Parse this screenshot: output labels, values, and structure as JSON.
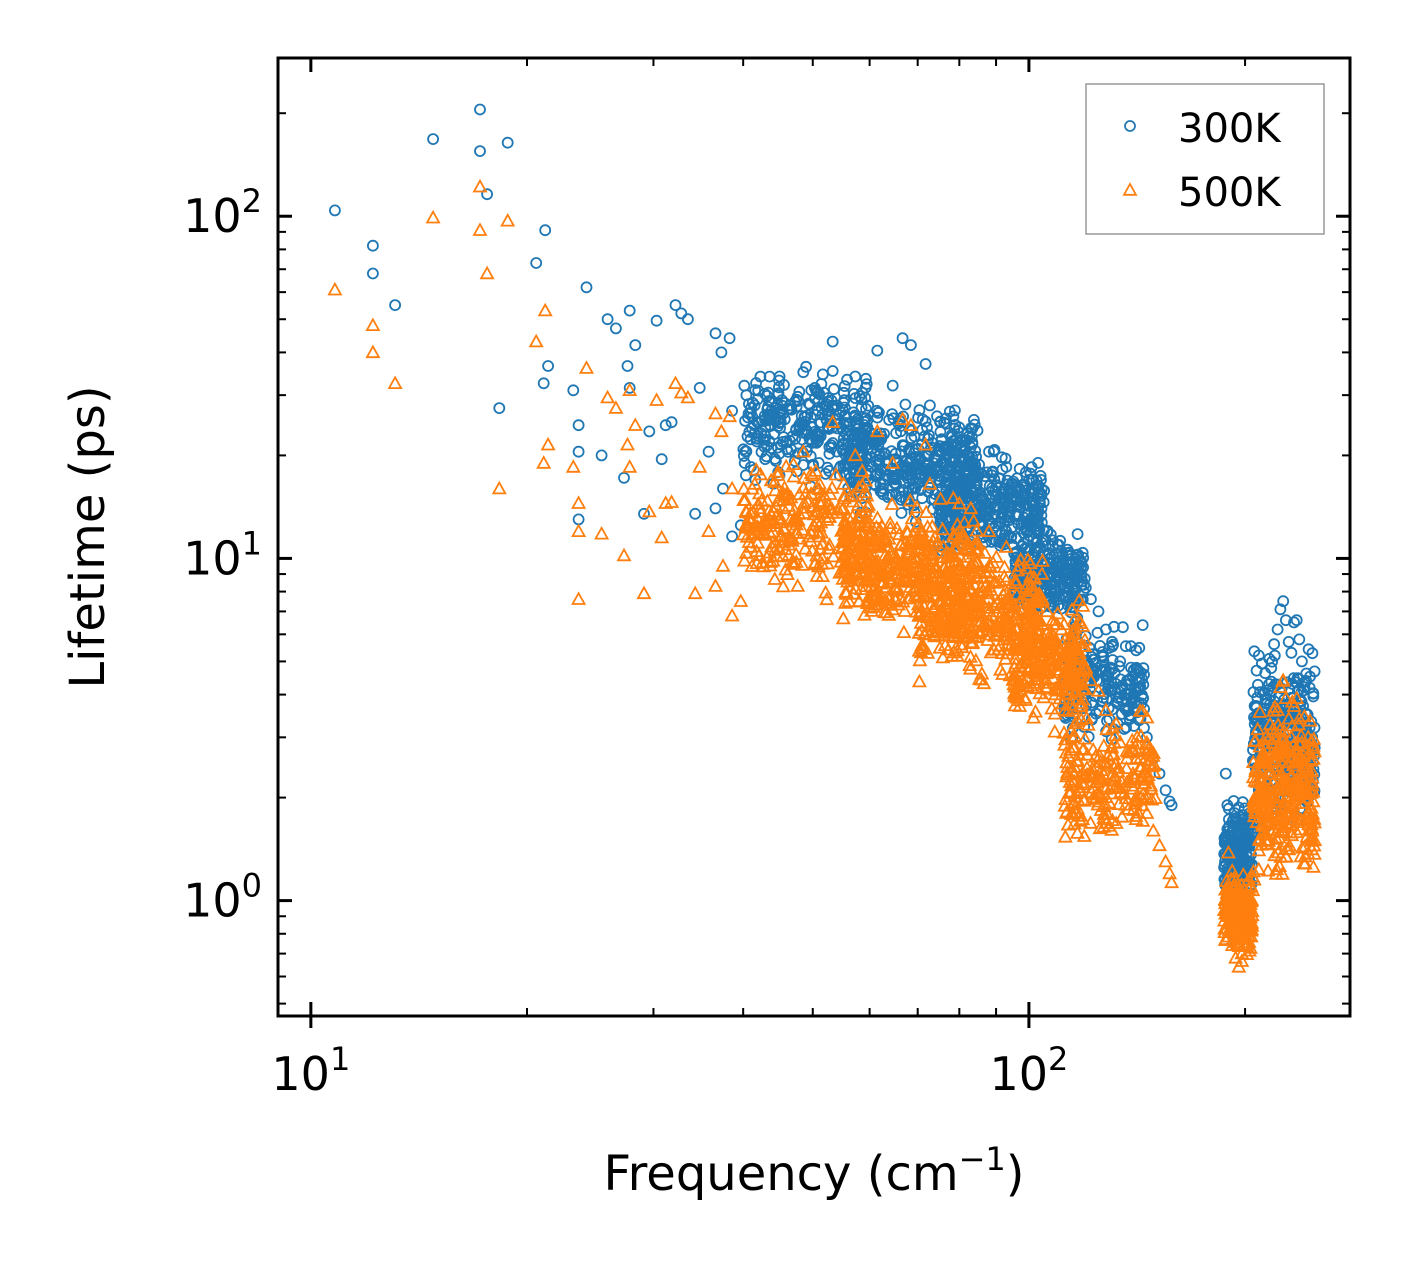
{
  "chart_data": {
    "type": "scatter",
    "title": "",
    "xlabel": "Frequency (cm",
    "xlabel_sup": "−1",
    "xlabel_end": ")",
    "ylabel": "Lifetime (ps)",
    "xscale": "log",
    "yscale": "log",
    "xlim": [
      9,
      280
    ],
    "ylim": [
      0.46,
      290
    ],
    "x_ticks": [
      {
        "value": 10,
        "base": "10",
        "exp": "1"
      },
      {
        "value": 100,
        "base": "10",
        "exp": "2"
      }
    ],
    "y_ticks": [
      {
        "value": 1,
        "base": "10",
        "exp": "0"
      },
      {
        "value": 10,
        "base": "10",
        "exp": "1"
      },
      {
        "value": 100,
        "base": "10",
        "exp": "2"
      }
    ],
    "legend": {
      "location": "top-right"
    },
    "series": [
      {
        "name": "300K",
        "marker": "circle",
        "color": "#1f77b4",
        "points": [
          [
            10.8,
            104
          ],
          [
            12.2,
            82
          ],
          [
            12.2,
            68
          ],
          [
            13.1,
            55
          ],
          [
            14.8,
            168
          ],
          [
            17.2,
            205
          ],
          [
            17.2,
            155
          ],
          [
            17.6,
            116
          ],
          [
            18.3,
            27.5
          ],
          [
            18.8,
            164
          ],
          [
            20.6,
            73
          ],
          [
            21.2,
            91
          ],
          [
            21.1,
            32.5
          ],
          [
            21.4,
            36.5
          ],
          [
            23.2,
            31
          ],
          [
            23.6,
            24.5
          ],
          [
            23.6,
            20.5
          ],
          [
            23.6,
            13
          ],
          [
            24.2,
            62
          ],
          [
            25.4,
            20
          ],
          [
            25.9,
            50
          ],
          [
            26.6,
            47
          ],
          [
            27.3,
            17.2
          ],
          [
            27.6,
            36.5
          ],
          [
            27.8,
            31.5
          ],
          [
            27.8,
            53
          ],
          [
            28.3,
            42
          ],
          [
            29.1,
            13.5
          ],
          [
            29.6,
            23.5
          ],
          [
            30.3,
            49.5
          ],
          [
            30.8,
            19.5
          ],
          [
            31.2,
            24.5
          ],
          [
            31.8,
            25
          ],
          [
            32.2,
            55
          ],
          [
            32.8,
            52
          ],
          [
            33.5,
            50
          ],
          [
            34.3,
            13.5
          ],
          [
            34.8,
            31.5
          ],
          [
            35.8,
            20.5
          ],
          [
            36.6,
            14
          ],
          [
            36.6,
            45.5
          ],
          [
            37.3,
            40
          ],
          [
            37.5,
            16
          ],
          [
            38.3,
            44
          ],
          [
            38.6,
            11.6
          ],
          [
            38.6,
            27
          ],
          [
            39.7,
            12.5
          ],
          [
            41.0,
            18.5
          ],
          [
            41.5,
            28
          ],
          [
            43.5,
            22
          ],
          [
            44.7,
            30
          ],
          [
            45.5,
            26.5
          ],
          [
            48.5,
            35
          ],
          [
            50.5,
            31
          ],
          [
            53.3,
            43
          ],
          [
            55.2,
            28.5
          ],
          [
            57.3,
            34
          ],
          [
            58.6,
            30.5
          ],
          [
            61.5,
            40.5
          ],
          [
            64.6,
            32
          ],
          [
            66.7,
            44
          ],
          [
            68.5,
            42
          ],
          [
            71.8,
            37
          ],
          [
            72.8,
            28
          ],
          [
            78.5,
            26
          ],
          [
            83,
            24
          ],
          [
            88,
            20.5
          ],
          [
            93,
            18.5
          ],
          [
            97,
            16
          ],
          [
            102,
            13
          ],
          [
            106,
            12
          ],
          [
            108,
            11.3
          ],
          [
            111,
            10.5
          ],
          [
            115,
            9.8
          ],
          [
            117,
            9.0
          ],
          [
            120,
            8.2
          ],
          [
            122,
            7.6
          ],
          [
            125,
            7.0
          ],
          [
            128,
            6.2
          ],
          [
            131,
            5.6
          ],
          [
            134,
            5.0
          ],
          [
            137,
            4.4
          ],
          [
            140,
            3.9
          ],
          [
            143,
            3.4
          ],
          [
            146,
            3.0
          ],
          [
            149,
            2.6
          ],
          [
            152,
            2.35
          ],
          [
            155,
            2.1
          ],
          [
            157,
            1.95
          ],
          [
            158,
            1.9
          ],
          [
            188,
            2.35
          ],
          [
            189,
            1.9
          ],
          [
            190,
            1.65
          ],
          [
            192,
            1.45
          ],
          [
            194,
            1.28
          ],
          [
            196,
            1.2
          ],
          [
            198,
            1.15
          ],
          [
            200,
            1.25
          ],
          [
            203,
            1.45
          ],
          [
            206,
            1.7
          ],
          [
            209,
            2.1
          ],
          [
            212,
            2.6
          ],
          [
            215,
            3.2
          ],
          [
            218,
            4.1
          ],
          [
            220,
            5.2
          ],
          [
            222,
            6.2
          ],
          [
            224,
            7.1
          ],
          [
            226,
            7.5
          ],
          [
            228,
            6.6
          ],
          [
            230,
            5.7
          ],
          [
            232,
            5.3
          ],
          [
            234,
            6.5
          ],
          [
            236,
            6.6
          ],
          [
            238,
            5.8
          ],
          [
            240,
            5.0
          ],
          [
            242,
            4.2
          ],
          [
            244,
            3.5
          ],
          [
            246,
            3.2
          ],
          [
            248,
            3.0
          ],
          [
            250,
            2.8
          ]
        ],
        "clusters": [
          {
            "x": [
              40,
              60
            ],
            "y": [
              15,
              40
            ],
            "n": 280
          },
          {
            "x": [
              55,
              85
            ],
            "y": [
              12,
              30
            ],
            "n": 420
          },
          {
            "x": [
              75,
              105
            ],
            "y": [
              9,
              22
            ],
            "n": 380
          },
          {
            "x": [
              95,
              120
            ],
            "y": [
              6,
              13
            ],
            "n": 260
          },
          {
            "x": [
              112,
              145
            ],
            "y": [
              2.6,
              7
            ],
            "n": 220
          },
          {
            "x": [
              187,
              205
            ],
            "y": [
              0.9,
              2.2
            ],
            "n": 200
          },
          {
            "x": [
              205,
              250
            ],
            "y": [
              1.4,
              6.2
            ],
            "n": 320
          }
        ]
      },
      {
        "name": "500K",
        "marker": "triangle",
        "color": "#ff7f0e",
        "points": [
          [
            10.8,
            61
          ],
          [
            12.2,
            48
          ],
          [
            12.2,
            40
          ],
          [
            13.1,
            32.5
          ],
          [
            14.8,
            99
          ],
          [
            17.2,
            122
          ],
          [
            17.2,
            91
          ],
          [
            17.6,
            68
          ],
          [
            18.3,
            16
          ],
          [
            18.8,
            97
          ],
          [
            20.6,
            43
          ],
          [
            21.2,
            53
          ],
          [
            21.1,
            19
          ],
          [
            21.4,
            21.5
          ],
          [
            23.2,
            18.5
          ],
          [
            23.6,
            14.5
          ],
          [
            23.6,
            12
          ],
          [
            23.6,
            7.6
          ],
          [
            24.2,
            36
          ],
          [
            25.4,
            11.8
          ],
          [
            25.9,
            29.5
          ],
          [
            26.6,
            27.5
          ],
          [
            27.3,
            10.2
          ],
          [
            27.6,
            21.5
          ],
          [
            27.8,
            18.5
          ],
          [
            27.8,
            31
          ],
          [
            28.3,
            24.5
          ],
          [
            29.1,
            7.9
          ],
          [
            29.6,
            13.7
          ],
          [
            30.3,
            29
          ],
          [
            30.8,
            11.5
          ],
          [
            31.2,
            14.5
          ],
          [
            31.8,
            14.6
          ],
          [
            32.2,
            32.5
          ],
          [
            32.8,
            30.5
          ],
          [
            33.5,
            29.5
          ],
          [
            34.3,
            7.9
          ],
          [
            34.8,
            18.5
          ],
          [
            35.8,
            12
          ],
          [
            36.6,
            8.3
          ],
          [
            36.6,
            26.5
          ],
          [
            37.3,
            23.5
          ],
          [
            37.5,
            9.5
          ],
          [
            38.3,
            26
          ],
          [
            38.6,
            6.8
          ],
          [
            38.6,
            16
          ],
          [
            39.7,
            7.5
          ],
          [
            41.0,
            10.8
          ],
          [
            41.5,
            16.5
          ],
          [
            43.5,
            13
          ],
          [
            44.7,
            17.5
          ],
          [
            45.5,
            15.5
          ],
          [
            48.5,
            20.5
          ],
          [
            50.5,
            18
          ],
          [
            53.3,
            25
          ],
          [
            55.2,
            16.5
          ],
          [
            57.3,
            20
          ],
          [
            58.6,
            18
          ],
          [
            61.5,
            23.5
          ],
          [
            64.6,
            19
          ],
          [
            66.7,
            25.5
          ],
          [
            68.5,
            24.5
          ],
          [
            71.8,
            21.5
          ],
          [
            72.8,
            16.5
          ],
          [
            78.5,
            15
          ],
          [
            83,
            14
          ],
          [
            88,
            12
          ],
          [
            93,
            10.8
          ],
          [
            97,
            9.5
          ],
          [
            102,
            7.6
          ],
          [
            106,
            7.0
          ],
          [
            108,
            6.6
          ],
          [
            111,
            6.2
          ],
          [
            115,
            5.7
          ],
          [
            117,
            5.2
          ],
          [
            120,
            4.8
          ],
          [
            122,
            4.4
          ],
          [
            125,
            4.1
          ],
          [
            128,
            3.6
          ],
          [
            131,
            3.2
          ],
          [
            134,
            2.9
          ],
          [
            137,
            2.6
          ],
          [
            140,
            2.3
          ],
          [
            143,
            2.0
          ],
          [
            146,
            1.8
          ],
          [
            149,
            1.6
          ],
          [
            152,
            1.45
          ],
          [
            155,
            1.3
          ],
          [
            157,
            1.2
          ],
          [
            158,
            1.13
          ],
          [
            188,
            1.0
          ],
          [
            189,
            0.9
          ],
          [
            190,
            0.82
          ],
          [
            192,
            0.74
          ],
          [
            194,
            0.68
          ],
          [
            196,
            0.64
          ],
          [
            198,
            0.7
          ],
          [
            200,
            0.8
          ],
          [
            203,
            0.95
          ],
          [
            206,
            1.15
          ],
          [
            209,
            1.4
          ],
          [
            212,
            1.75
          ],
          [
            215,
            2.1
          ],
          [
            218,
            2.6
          ],
          [
            220,
            3.1
          ],
          [
            222,
            3.6
          ],
          [
            224,
            4.2
          ],
          [
            226,
            4.4
          ],
          [
            228,
            3.9
          ],
          [
            230,
            3.4
          ],
          [
            232,
            3.0
          ],
          [
            234,
            3.7
          ],
          [
            236,
            3.9
          ],
          [
            238,
            3.4
          ],
          [
            240,
            2.9
          ],
          [
            242,
            2.4
          ],
          [
            244,
            2.0
          ],
          [
            246,
            1.8
          ],
          [
            248,
            1.6
          ],
          [
            250,
            1.5
          ]
        ],
        "clusters": [
          {
            "x": [
              40,
              60
            ],
            "y": [
              7,
              22
            ],
            "n": 260
          },
          {
            "x": [
              55,
              85
            ],
            "y": [
              5.5,
              16
            ],
            "n": 420
          },
          {
            "x": [
              70,
              105
            ],
            "y": [
              4,
              12
            ],
            "n": 380
          },
          {
            "x": [
              95,
              120
            ],
            "y": [
              3,
              8
            ],
            "n": 260
          },
          {
            "x": [
              112,
              150
            ],
            "y": [
              1.3,
              4
            ],
            "n": 220
          },
          {
            "x": [
              187,
              205
            ],
            "y": [
              0.62,
              1.4
            ],
            "n": 200
          },
          {
            "x": [
              205,
              250
            ],
            "y": [
              1.0,
              4.5
            ],
            "n": 320
          }
        ]
      }
    ]
  }
}
